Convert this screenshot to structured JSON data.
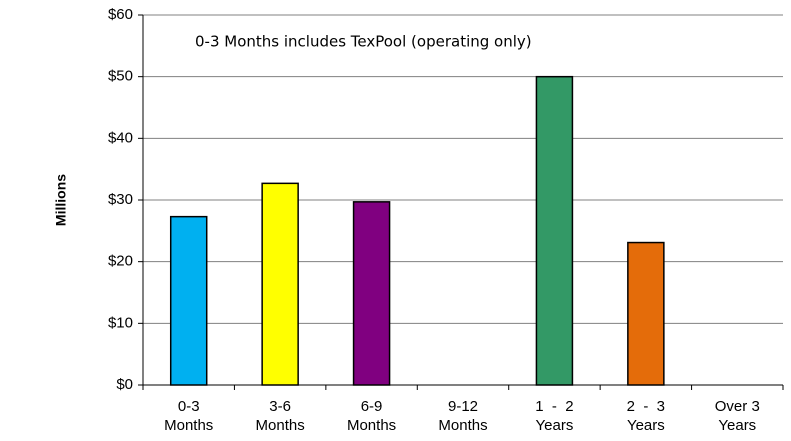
{
  "chart_data": {
    "type": "bar",
    "annotation": "0-3 Months includes TexPool  (operating only)",
    "y_axis_label": "Millions",
    "categories": [
      "0-3 Months",
      "3-6 Months",
      "6-9 Months",
      "9-12 Months",
      "1  -  2 Years",
      "2  -  3 Years",
      "Over 3 Years"
    ],
    "values": [
      27.3,
      32.7,
      29.7,
      0,
      50,
      23.1,
      0
    ],
    "colors": [
      "#00b0f0",
      "#ffff00",
      "#800080",
      null,
      "#339966",
      "#e46c0a",
      null
    ],
    "ylim": [
      0,
      60
    ],
    "yticks": [
      {
        "value": 0,
        "label": "$0"
      },
      {
        "value": 10,
        "label": "$10"
      },
      {
        "value": 20,
        "label": "$20"
      },
      {
        "value": 30,
        "label": "$30"
      },
      {
        "value": 40,
        "label": "$40"
      },
      {
        "value": 50,
        "label": "$50"
      },
      {
        "value": 60,
        "label": "$60"
      }
    ],
    "grid": true
  }
}
